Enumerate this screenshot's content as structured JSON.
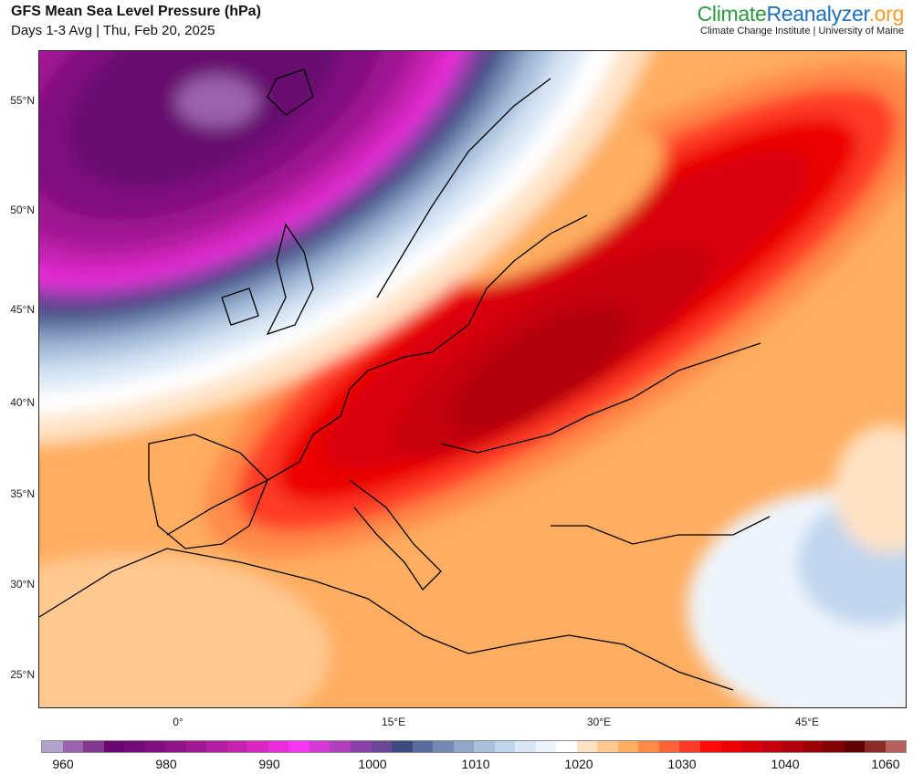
{
  "header": {
    "title": "GFS Mean Sea Level Pressure (hPa)",
    "subtitle": "Days 1-3 Avg | Thu, Feb 20, 2025"
  },
  "logo": {
    "part1": "Climate",
    "part2": "Reanalyzer",
    "part3": ".org",
    "tagline": "Climate Change Institute | University of Maine"
  },
  "map": {
    "variable": "Mean Sea Level Pressure",
    "lat_labels": [
      "55°N",
      "50°N",
      "45°N",
      "40°N",
      "35°N",
      "30°N",
      "25°N"
    ],
    "lon_labels": [
      "0°",
      "15°E",
      "30°E",
      "45°E"
    ]
  },
  "colorbar": {
    "labels": [
      "960",
      "980",
      "990",
      "1000",
      "1010",
      "1020",
      "1030",
      "1040",
      "1060"
    ],
    "colors": [
      "#b1a3cc",
      "#9b62ad",
      "#82378f",
      "#680770",
      "#730a76",
      "#80107f",
      "#901488",
      "#a01993",
      "#b21ea0",
      "#c423b0",
      "#d828c2",
      "#ea2bd8",
      "#fa36f5",
      "#d43ad3",
      "#b03fbd",
      "#8a40a8",
      "#6a4896",
      "#3c4a80",
      "#586a9e",
      "#7389b4",
      "#90a5c8",
      "#a8c0dc",
      "#c0d6ee",
      "#d8e6f6",
      "#eef4fc",
      "#ffffff",
      "#ffe2c4",
      "#ffc890",
      "#ffad60",
      "#ff8a48",
      "#ff6438",
      "#ff3a28",
      "#ff0a0a",
      "#ec0000",
      "#d80008",
      "#c4000c",
      "#b00010",
      "#980008",
      "#800004",
      "#600000",
      "#8c2a2a",
      "#b86060"
    ]
  }
}
